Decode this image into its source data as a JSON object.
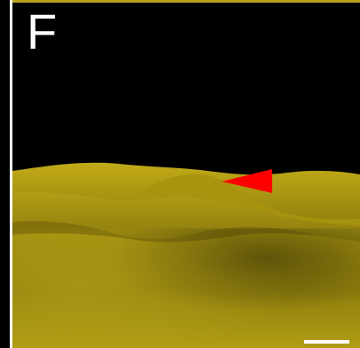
{
  "panel": {
    "label": "F"
  },
  "colors": {
    "background": "#000000",
    "terrain": "#9b8a10",
    "terrain_light": "#c4ad1c",
    "terrain_dark": "#4a420a",
    "marker": "#ff0000",
    "scale_bar": "#ffffff",
    "frame_top": "#b8a21a",
    "frame_left": "#ffffff"
  },
  "icons": {
    "marker": "red-triangle-marker-icon"
  }
}
